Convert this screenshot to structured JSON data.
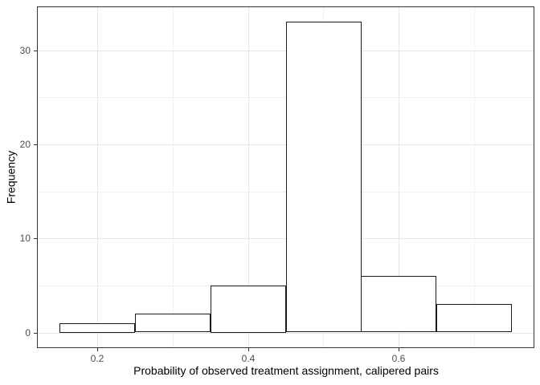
{
  "figure": {
    "background": "#FFFFFF"
  },
  "chart_data": {
    "type": "bar",
    "subtype": "histogram",
    "title": "",
    "xlabel": "Probability of observed treatment assignment, calipered pairs",
    "ylabel": "Frequency",
    "bin_edges": [
      0.15,
      0.25,
      0.35,
      0.45,
      0.55,
      0.65,
      0.75
    ],
    "counts": [
      1,
      2,
      5,
      33,
      6,
      3
    ],
    "x_ticks_major": [
      0.2,
      0.4,
      0.6
    ],
    "x_ticks_minor": [
      0.3,
      0.5,
      0.7
    ],
    "y_ticks_major": [
      0,
      10,
      20,
      30
    ],
    "y_ticks_minor": [
      5,
      15,
      25
    ],
    "xlim": [
      0.12,
      0.78
    ],
    "ylim": [
      -1.65,
      34.65
    ],
    "grid": "on",
    "legend": "none",
    "colors": {
      "bar_fill": "#FFFFFF",
      "bar_border": "#1A1A1A",
      "panel_border": "#333333",
      "grid_major": "#E6E6E6",
      "grid_minor": "#F0F0F0",
      "tick_mark": "#333333",
      "tick_label": "#4D4D4D",
      "axis_title": "#000000"
    }
  }
}
